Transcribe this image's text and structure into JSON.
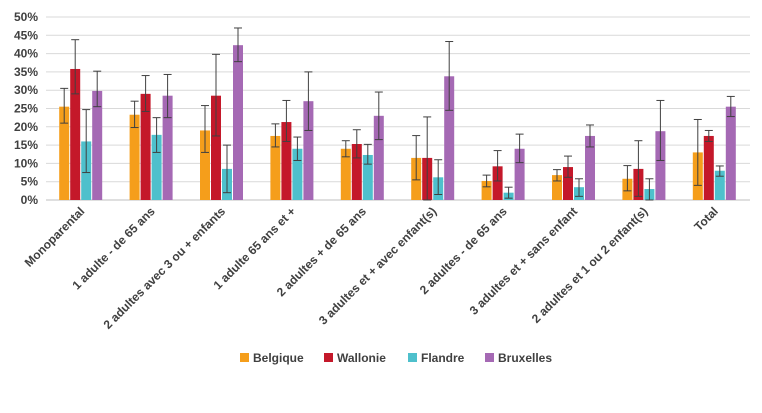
{
  "chart_data": {
    "type": "bar",
    "categories": [
      "Monoparental",
      "1 adulte - de 65 ans",
      "2 adultes avec 3 ou + enfants",
      "1 adulte 65 ans et +",
      "2 adultes + de 65 ans",
      "3 adultes et + avec enfant(s)",
      "2 adultes - de 65 ans",
      "3 adultes et + sans enfant",
      "2 adultes et 1 ou 2 enfant(s)",
      "Total"
    ],
    "series": [
      {
        "name": "Belgique",
        "color": "#f59e1b",
        "values": [
          25.5,
          23.3,
          19.0,
          17.5,
          14.0,
          11.5,
          5.2,
          6.8,
          5.8,
          13.0
        ],
        "err_low": [
          21.0,
          19.8,
          13.0,
          14.5,
          11.8,
          5.5,
          3.6,
          5.2,
          2.5,
          4.0
        ],
        "err_high": [
          30.5,
          27.0,
          25.8,
          20.8,
          16.2,
          17.6,
          6.8,
          8.3,
          9.4,
          22.0
        ]
      },
      {
        "name": "Wallonie",
        "color": "#c4182a",
        "values": [
          35.8,
          29.0,
          28.5,
          21.3,
          15.3,
          11.5,
          9.2,
          9.0,
          8.5,
          17.5
        ],
        "err_low": [
          29.0,
          24.2,
          17.5,
          16.0,
          11.5,
          0.0,
          5.2,
          6.2,
          1.0,
          16.0
        ],
        "err_high": [
          43.8,
          34.0,
          39.8,
          27.2,
          19.2,
          22.7,
          13.5,
          12.0,
          16.2,
          19.0
        ]
      },
      {
        "name": "Flandre",
        "color": "#4ec0cc",
        "values": [
          16.0,
          17.8,
          8.5,
          14.0,
          12.3,
          6.2,
          2.0,
          3.5,
          3.0,
          8.0
        ],
        "err_low": [
          7.5,
          13.0,
          2.0,
          10.8,
          9.8,
          1.5,
          0.5,
          1.0,
          0.0,
          6.5
        ],
        "err_high": [
          24.7,
          22.5,
          15.0,
          17.2,
          15.2,
          11.0,
          3.5,
          5.8,
          5.8,
          9.3
        ]
      },
      {
        "name": "Bruxelles",
        "color": "#a569b4",
        "values": [
          29.8,
          28.5,
          42.3,
          27.0,
          23.0,
          33.8,
          14.0,
          17.5,
          18.8,
          25.5
        ],
        "err_low": [
          25.5,
          22.5,
          37.8,
          19.0,
          16.5,
          24.5,
          10.2,
          14.5,
          10.8,
          22.8
        ],
        "err_high": [
          35.2,
          34.3,
          47.0,
          35.0,
          29.5,
          43.3,
          18.0,
          20.5,
          27.2,
          28.3
        ]
      }
    ],
    "ylim": [
      0,
      50
    ],
    "yticks": [
      "0%",
      "5%",
      "10%",
      "15%",
      "20%",
      "25%",
      "30%",
      "35%",
      "40%",
      "45%",
      "50%"
    ],
    "grid": true,
    "legend_position": "bottom",
    "title": "",
    "xlabel": "",
    "ylabel": ""
  }
}
